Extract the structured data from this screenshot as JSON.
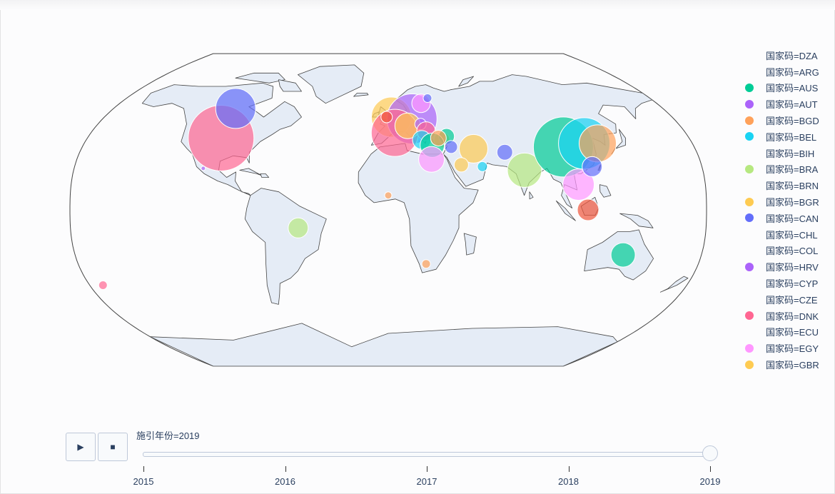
{
  "colors": {
    "ocean_bg": "#fcfcfd",
    "land": "#e5ecf6",
    "coast": "#444444",
    "track": "#bec8d9"
  },
  "legend": [
    {
      "label": "国家码=DZA",
      "color": ""
    },
    {
      "label": "国家码=ARG",
      "color": ""
    },
    {
      "label": "国家码=AUS",
      "color": "#00cc96"
    },
    {
      "label": "国家码=AUT",
      "color": "#ab63fa"
    },
    {
      "label": "国家码=BGD",
      "color": "#ffa15a"
    },
    {
      "label": "国家码=BEL",
      "color": "#19d3f3"
    },
    {
      "label": "国家码=BIH",
      "color": ""
    },
    {
      "label": "国家码=BRA",
      "color": "#b6e880"
    },
    {
      "label": "国家码=BRN",
      "color": ""
    },
    {
      "label": "国家码=BGR",
      "color": "#fecb52"
    },
    {
      "label": "国家码=CAN",
      "color": "#636efa"
    },
    {
      "label": "国家码=CHL",
      "color": ""
    },
    {
      "label": "国家码=COL",
      "color": ""
    },
    {
      "label": "国家码=HRV",
      "color": "#ab63fa"
    },
    {
      "label": "国家码=CYP",
      "color": ""
    },
    {
      "label": "国家码=CZE",
      "color": ""
    },
    {
      "label": "国家码=DNK",
      "color": "#ff6692"
    },
    {
      "label": "国家码=ECU",
      "color": ""
    },
    {
      "label": "国家码=EGY",
      "color": "#ff97ff"
    },
    {
      "label": "国家码=GBR",
      "color": "#fecb52"
    }
  ],
  "bubbles": [
    {
      "lon": -100,
      "lat": 40,
      "size": 46,
      "color": "#ff6692"
    },
    {
      "lon": -100,
      "lat": 57,
      "size": 28,
      "color": "#636efa"
    },
    {
      "lon": -106,
      "lat": 23,
      "size": 3,
      "color": "#ab63fa"
    },
    {
      "lon": -172,
      "lat": -42,
      "size": 6,
      "color": "#ff6692"
    },
    {
      "lon": -51,
      "lat": -10,
      "size": 14,
      "color": "#b6e880"
    },
    {
      "lon": 135,
      "lat": -25,
      "size": 17,
      "color": "#00cc96"
    },
    {
      "lon": 2,
      "lat": 52,
      "size": 28,
      "color": "#fecb52"
    },
    {
      "lon": 15,
      "lat": 51,
      "size": 35,
      "color": "#ab63fa"
    },
    {
      "lon": 4,
      "lat": 43,
      "size": 33,
      "color": "#ff6692"
    },
    {
      "lon": 12,
      "lat": 47,
      "size": 18,
      "color": "#fecb52"
    },
    {
      "lon": 22,
      "lat": 60,
      "size": 13,
      "color": "#ff97ff"
    },
    {
      "lon": 27,
      "lat": 63,
      "size": 6,
      "color": "#636efa"
    },
    {
      "lon": 20,
      "lat": 48,
      "size": 8,
      "color": "#ab63fa"
    },
    {
      "lon": -1,
      "lat": 52,
      "size": 8,
      "color": "#ef553b"
    },
    {
      "lon": 23,
      "lat": 44,
      "size": 13,
      "color": "#ff6692"
    },
    {
      "lon": 20,
      "lat": 39,
      "size": 13,
      "color": "#19d3f3"
    },
    {
      "lon": 32,
      "lat": 39,
      "size": 11,
      "color": "#fecb52"
    },
    {
      "lon": 35,
      "lat": 41,
      "size": 11,
      "color": "#00cc96"
    },
    {
      "lon": 26,
      "lat": 36,
      "size": 17,
      "color": "#00cc96"
    },
    {
      "lon": 25,
      "lat": 28,
      "size": 18,
      "color": "#ff97ff"
    },
    {
      "lon": 30,
      "lat": 40,
      "size": 11,
      "color": "#ffa15a"
    },
    {
      "lon": 37,
      "lat": 35,
      "size": 9,
      "color": "#636efa"
    },
    {
      "lon": 50,
      "lat": 34,
      "size": 20,
      "color": "#fecb52"
    },
    {
      "lon": 42,
      "lat": 25,
      "size": 10,
      "color": "#fecb52"
    },
    {
      "lon": 54,
      "lat": 24,
      "size": 7,
      "color": "#19d3f3"
    },
    {
      "lon": 68,
      "lat": 32,
      "size": 11,
      "color": "#636efa"
    },
    {
      "lon": 78,
      "lat": 22,
      "size": 24,
      "color": "#b6e880"
    },
    {
      "lon": 103,
      "lat": 35,
      "size": 42,
      "color": "#00cc96"
    },
    {
      "lon": 116,
      "lat": 37,
      "size": 36,
      "color": "#19d3f3"
    },
    {
      "lon": 124,
      "lat": 37,
      "size": 26,
      "color": "#ffa15a"
    },
    {
      "lon": 108,
      "lat": 14,
      "size": 22,
      "color": "#ff97ff"
    },
    {
      "lon": 117,
      "lat": 24,
      "size": 14,
      "color": "#636efa"
    },
    {
      "lon": 113,
      "lat": 0,
      "size": 15,
      "color": "#ef553b"
    },
    {
      "lon": 0,
      "lat": 8,
      "size": 5,
      "color": "#ffa15a"
    },
    {
      "lon": 22,
      "lat": -30,
      "size": 6,
      "color": "#ffa15a"
    }
  ],
  "slider": {
    "label": "施引年份=2019",
    "ticks": [
      "2015",
      "2016",
      "2017",
      "2018",
      "2019"
    ],
    "value": "2019"
  },
  "controls": {
    "play": "▶",
    "stop": "■"
  }
}
